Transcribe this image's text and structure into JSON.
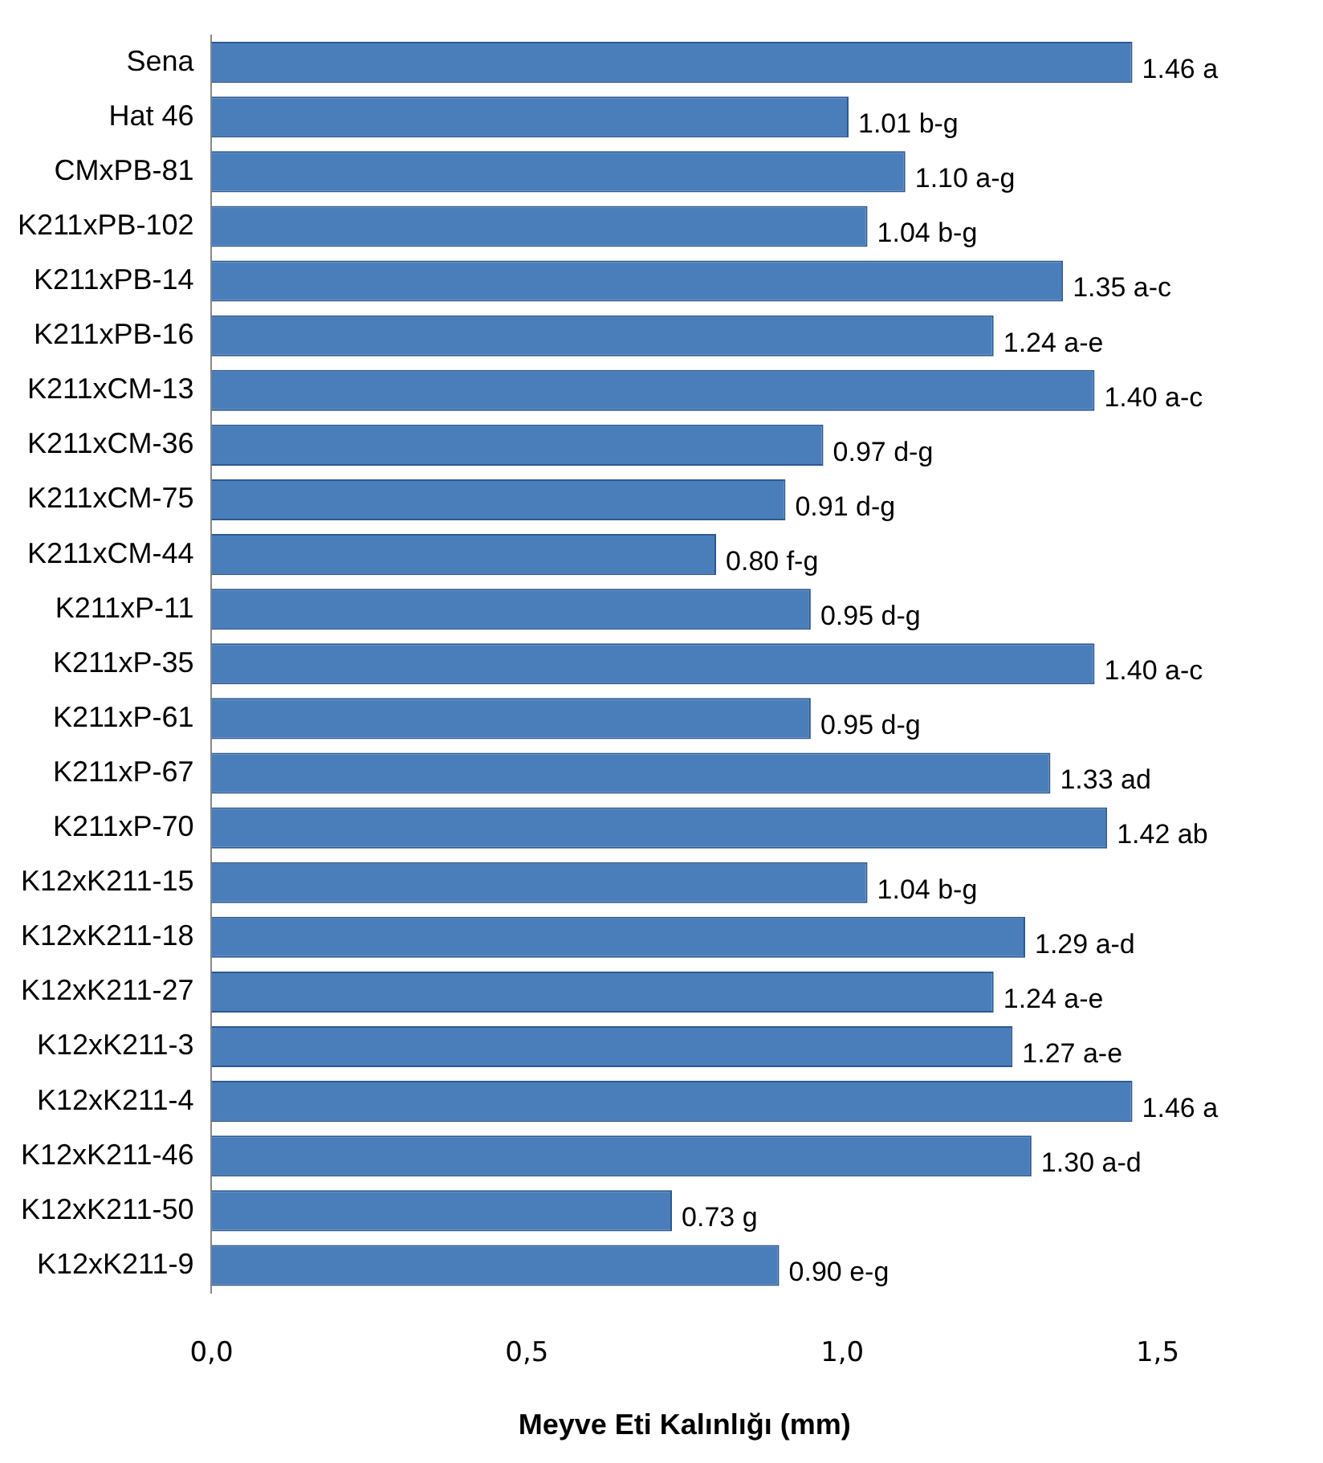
{
  "chart_data": {
    "type": "bar",
    "orientation": "horizontal",
    "xlabel": "Meyve Eti Kalınlığı (mm)",
    "categories": [
      "Sena",
      "Hat 46",
      "CMxPB-81",
      "K211xPB-102",
      "K211xPB-14",
      "K211xPB-16",
      "K211xCM-13",
      "K211xCM-36",
      "K211xCM-75",
      "K211xCM-44",
      "K211xP-11",
      "K211xP-35",
      "K211xP-61",
      "K211xP-67",
      "K211xP-70",
      "K12xK211-15",
      "K12xK211-18",
      "K12xK211-27",
      "K12xK211-3",
      "K12xK211-4",
      "K12xK211-46",
      "K12xK211-50",
      "K12xK211-9"
    ],
    "values": [
      1.46,
      1.01,
      1.1,
      1.04,
      1.35,
      1.24,
      1.4,
      0.97,
      0.91,
      0.8,
      0.95,
      1.4,
      0.95,
      1.33,
      1.42,
      1.04,
      1.29,
      1.24,
      1.27,
      1.46,
      1.3,
      0.73,
      0.9
    ],
    "value_labels": [
      "1.46 a",
      "1.01 b-g",
      "1.10 a-g",
      "1.04 b-g",
      "1.35 a-c",
      "1.24 a-e",
      "1.40 a-c",
      "0.97 d-g",
      "0.91 d-g",
      "0.80 f-g",
      "0.95 d-g",
      "1.40 a-c",
      "0.95 d-g",
      "1.33 ad",
      "1.42 ab",
      "1.04 b-g",
      "1.29 a-d",
      "1.24 a-e",
      "1.27 a-e",
      "1.46 a",
      "1.30 a-d",
      "0.73 g",
      "0.90 e-g"
    ],
    "color": "#4a7ebb",
    "xlim": [
      0,
      1.5
    ],
    "xticks": [
      {
        "value": 0,
        "label": "0,0"
      },
      {
        "value": 0.5,
        "label": "0,5"
      },
      {
        "value": 1,
        "label": "1,0"
      },
      {
        "value": 1.5,
        "label": "1,5"
      }
    ],
    "grid": false,
    "legend": false
  }
}
